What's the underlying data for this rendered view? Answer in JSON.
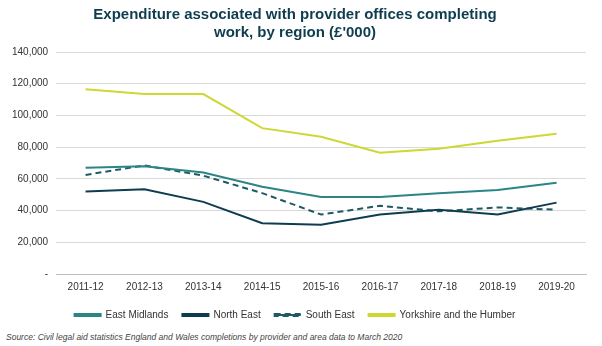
{
  "chart_data": {
    "type": "line",
    "title": [
      "Expenditure associated with provider offices completing",
      "work, by region (£'000)"
    ],
    "source": "Source: Civil legal aid statistics England and Wales completions by provider and area data to March 2020",
    "categories": [
      "2011-12",
      "2012-13",
      "2013-14",
      "2014-15",
      "2015-16",
      "2016-17",
      "2017-18",
      "2018-19",
      "2019-20"
    ],
    "series": [
      {
        "name": "East Midlands",
        "color": "#2b8585",
        "line_style": "solid",
        "marker": "none",
        "values": [
          67000,
          68000,
          64000,
          55000,
          48500,
          48500,
          51000,
          53000,
          57500
        ]
      },
      {
        "name": "North East",
        "color": "#0e3d4f",
        "line_style": "solid",
        "marker": "none",
        "values": [
          52000,
          53500,
          45500,
          32000,
          31000,
          37500,
          40500,
          37500,
          45000
        ]
      },
      {
        "name": "South East",
        "color": "#1d5a66",
        "line_style": "dashed",
        "marker": "none",
        "values": [
          62500,
          68500,
          62000,
          51000,
          37500,
          43000,
          39500,
          42000,
          40500
        ]
      },
      {
        "name": "Yorkshire and the Humber",
        "color": "#cdd832",
        "line_style": "solid",
        "marker": "none",
        "values": [
          116500,
          113500,
          113500,
          92000,
          86500,
          76500,
          79000,
          84000,
          88500
        ]
      }
    ],
    "ylim": [
      0,
      140000
    ],
    "yticks": [
      {
        "value": 0,
        "label": "-"
      },
      {
        "value": 20000,
        "label": "20,000"
      },
      {
        "value": 40000,
        "label": "40,000"
      },
      {
        "value": 60000,
        "label": "60,000"
      },
      {
        "value": 80000,
        "label": "80,000"
      },
      {
        "value": 100000,
        "label": "100,000"
      },
      {
        "value": 120000,
        "label": "120,000"
      },
      {
        "value": 140000,
        "label": "140,000"
      }
    ],
    "grid": true,
    "legend": "bottom"
  }
}
